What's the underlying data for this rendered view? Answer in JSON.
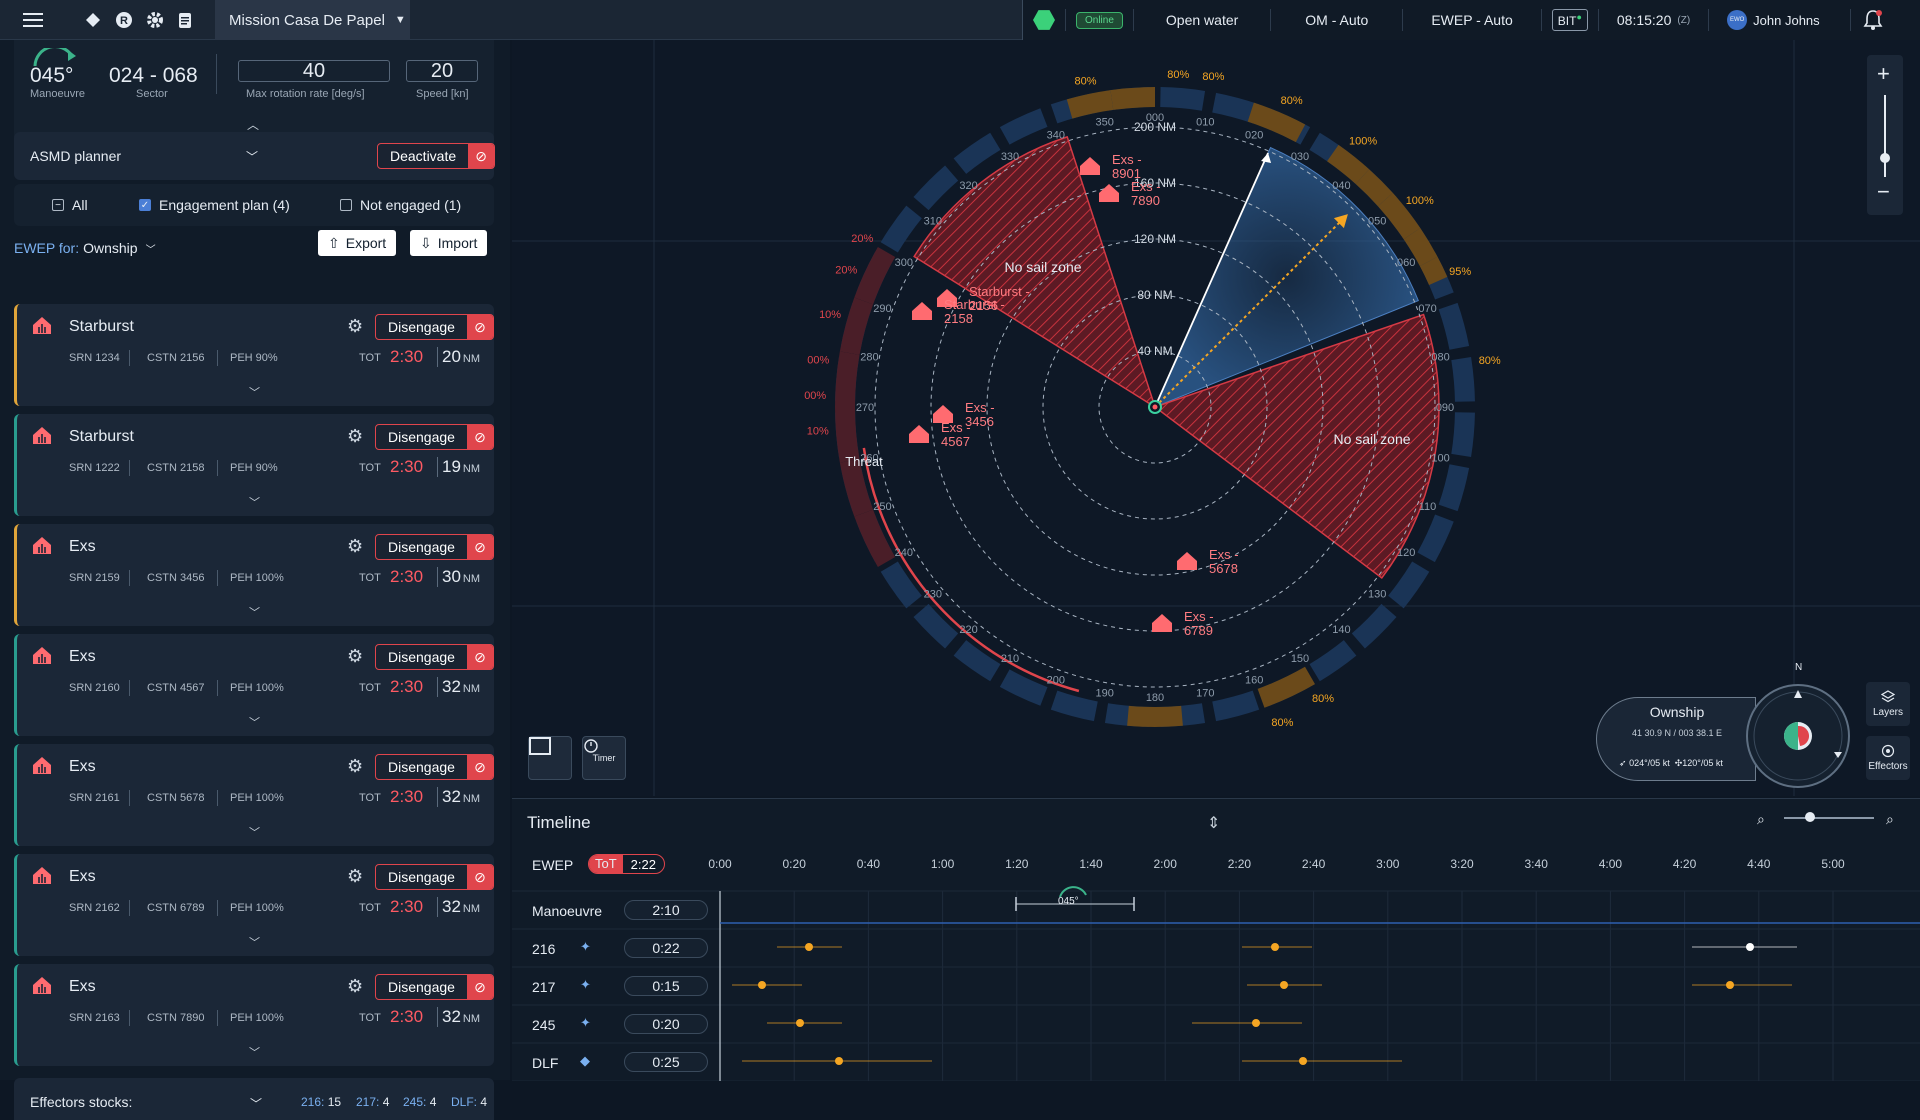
{
  "topbar": {
    "mission": "Mission Casa De Papel",
    "status_online": "Online",
    "water": "Open water",
    "om_mode": "OM - Auto",
    "ewep_mode": "EWEP - Auto",
    "bit": "BIT",
    "clock": "08:15:20",
    "clock_zone": "(Z)",
    "avatar_initials": "EWO",
    "user": "John Johns"
  },
  "header": {
    "manoeuvre_value": "045°",
    "manoeuvre_label": "Manoeuvre",
    "sector_value": "024 - 068",
    "sector_label": "Sector",
    "rotation_value": "40",
    "rotation_label": "Max rotation rate [deg/s]",
    "speed_value": "20",
    "speed_label": "Speed [kn]"
  },
  "asmd": {
    "label": "ASMD planner",
    "deactivate": "Deactivate"
  },
  "filters": {
    "all": "All",
    "engagement": "Engagement plan (4)",
    "not_engaged": "Not engaged (1)"
  },
  "ewep": {
    "prefix": "EWEP for:",
    "target": "Ownship",
    "export": "Export",
    "import": "Import"
  },
  "cards": [
    {
      "name": "Starburst",
      "srn": "SRN 1234",
      "cstn": "CSTN 2156",
      "peh": "PEH 90%",
      "tot": "TOT",
      "time": "2:30",
      "dist": "20",
      "unit": "NM",
      "action": "Disengage",
      "status": "warn"
    },
    {
      "name": "Starburst",
      "srn": "SRN 1222",
      "cstn": "CSTN 2158",
      "peh": "PEH 90%",
      "tot": "TOT",
      "time": "2:30",
      "dist": "19",
      "unit": "NM",
      "action": "Disengage",
      "status": "ok"
    },
    {
      "name": "Exs",
      "srn": "SRN 2159",
      "cstn": "CSTN 3456",
      "peh": "PEH 100%",
      "tot": "TOT",
      "time": "2:30",
      "dist": "30",
      "unit": "NM",
      "action": "Disengage",
      "status": "warn"
    },
    {
      "name": "Exs",
      "srn": "SRN 2160",
      "cstn": "CSTN 4567",
      "peh": "PEH 100%",
      "tot": "TOT",
      "time": "2:30",
      "dist": "32",
      "unit": "NM",
      "action": "Disengage",
      "status": "ok"
    },
    {
      "name": "Exs",
      "srn": "SRN 2161",
      "cstn": "CSTN 5678",
      "peh": "PEH 100%",
      "tot": "TOT",
      "time": "2:30",
      "dist": "32",
      "unit": "NM",
      "action": "Disengage",
      "status": "ok"
    },
    {
      "name": "Exs",
      "srn": "SRN 2162",
      "cstn": "CSTN 6789",
      "peh": "PEH 100%",
      "tot": "TOT",
      "time": "2:30",
      "dist": "32",
      "unit": "NM",
      "action": "Disengage",
      "status": "ok"
    },
    {
      "name": "Exs",
      "srn": "SRN 2163",
      "cstn": "CSTN 7890",
      "peh": "PEH 100%",
      "tot": "TOT",
      "time": "2:30",
      "dist": "32",
      "unit": "NM",
      "action": "Disengage",
      "status": "ok"
    }
  ],
  "stocks": {
    "label": "Effectors stocks:",
    "s216": "216:",
    "v216": "15",
    "s217": "217:",
    "v217": "4",
    "s245": "245:",
    "v245": "4",
    "sdlf": "DLF:",
    "vdlf": "4"
  },
  "map": {
    "ranges": [
      "40 NM",
      "80 NM",
      "120 NM",
      "160 NM",
      "200 NM"
    ],
    "bearings": [
      "000",
      "010",
      "020",
      "030",
      "040",
      "050",
      "060",
      "070",
      "080",
      "090",
      "100",
      "110",
      "120",
      "130",
      "140",
      "150",
      "160",
      "170",
      "180",
      "190",
      "200",
      "210",
      "220",
      "230",
      "240",
      "250",
      "260",
      "270",
      "280",
      "290",
      "300",
      "310",
      "320",
      "330",
      "340",
      "350"
    ],
    "no_sail_1": "No sail zone",
    "no_sail_2": "No sail zone",
    "threat": "Threat",
    "pct_labels": [
      "80%",
      "80%",
      "80%",
      "80%",
      "100%",
      "100%",
      "95%",
      "80%",
      "80%",
      "80%",
      "10%",
      "00%",
      "00%",
      "10%",
      "20%",
      "20%"
    ],
    "contacts": [
      {
        "l1": "Exs -",
        "l2": "8901"
      },
      {
        "l1": "Exs -",
        "l2": "7890"
      },
      {
        "l1": "Starburst -",
        "l2": "2156"
      },
      {
        "l1": "Starburst -",
        "l2": "2158"
      },
      {
        "l1": "Exs -",
        "l2": "3456"
      },
      {
        "l1": "Exs -",
        "l2": "4567"
      },
      {
        "l1": "Exs -",
        "l2": "5678"
      },
      {
        "l1": "Exs -",
        "l2": "6789"
      }
    ],
    "timer": "Timer",
    "layers": "Layers",
    "effectors": "Effectors",
    "north": "N"
  },
  "ownship": {
    "title": "Ownship",
    "coords": "41 30.9 N / 003 38.1 E",
    "speed1": "024°/05 kt",
    "speed2": "120°/05 kt"
  },
  "timeline": {
    "title": "Timeline",
    "ewep": "EWEP",
    "tot_label": "ToT",
    "tot_value": "2:22",
    "ticks": [
      "0:00",
      "0:20",
      "0:40",
      "1:00",
      "1:20",
      "1:40",
      "2:00",
      "2:20",
      "2:40",
      "3:00",
      "3:20",
      "3:40",
      "4:00",
      "4:20",
      "4:40",
      "5:00"
    ],
    "manoeuvre_badge": "045°",
    "rows": [
      {
        "name": "Manoeuvre",
        "value": "2:10"
      },
      {
        "name": "216",
        "value": "0:22"
      },
      {
        "name": "217",
        "value": "0:15"
      },
      {
        "name": "245",
        "value": "0:20"
      },
      {
        "name": "DLF",
        "value": "0:25"
      }
    ]
  },
  "colors": {
    "accent_red": "#e0454c",
    "orange": "#f5a623",
    "blue_sector": "#2e5f93",
    "ok": "#2a9d8f",
    "warn": "#e0a53a"
  }
}
